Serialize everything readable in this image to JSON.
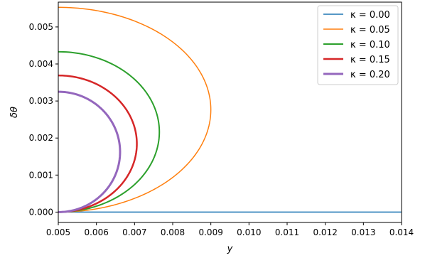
{
  "chart_data": {
    "type": "line",
    "title": "",
    "xlabel": "y",
    "ylabel": "δθ",
    "xlim": [
      0.005,
      0.014
    ],
    "ylim": [
      -0.00028,
      0.00567
    ],
    "xticks": [
      "0.005",
      "0.006",
      "0.007",
      "0.008",
      "0.009",
      "0.010",
      "0.011",
      "0.012",
      "0.013",
      "0.014"
    ],
    "yticks": [
      "0.000",
      "0.001",
      "0.002",
      "0.003",
      "0.004",
      "0.005"
    ],
    "grid": false,
    "legend_position": "top-right",
    "series": [
      {
        "name": "κ = 0.00",
        "color": "#1f77b4",
        "line_width": 1.5,
        "y_start": 0.005,
        "y_max": 0.014,
        "peak_dtheta": 0.0,
        "flat": true
      },
      {
        "name": "κ = 0.05",
        "color": "#ff7f0e",
        "line_width": 1.5,
        "y_start": 0.005,
        "y_max": 0.009,
        "peak_dtheta": 0.00553
      },
      {
        "name": "κ = 0.10",
        "color": "#2ca02c",
        "line_width": 2.0,
        "y_start": 0.005,
        "y_max": 0.00765,
        "peak_dtheta": 0.00433
      },
      {
        "name": "κ = 0.15",
        "color": "#d62728",
        "line_width": 2.5,
        "y_start": 0.005,
        "y_max": 0.00706,
        "peak_dtheta": 0.00369
      },
      {
        "name": "κ = 0.20",
        "color": "#9467bd",
        "line_width": 3.0,
        "y_start": 0.005,
        "y_max": 0.00662,
        "peak_dtheta": 0.00325
      }
    ]
  }
}
